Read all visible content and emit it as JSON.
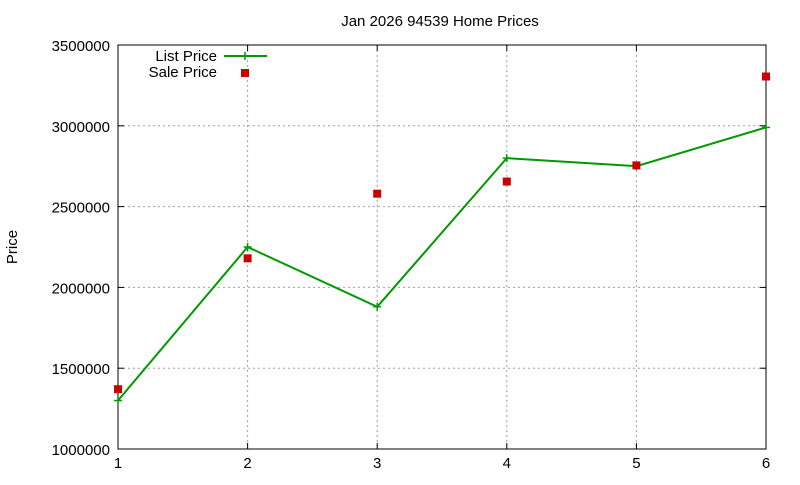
{
  "chart_data": {
    "type": "line",
    "title": "Jan 2026 94539 Home Prices",
    "xlabel": "",
    "ylabel": "Price",
    "x": [
      1,
      2,
      3,
      4,
      5,
      6
    ],
    "xlim": [
      1,
      6
    ],
    "ylim": [
      1000000,
      3500000
    ],
    "xticks": [
      "1",
      "2",
      "3",
      "4",
      "5",
      "6"
    ],
    "yticks": [
      "1000000",
      "1500000",
      "2000000",
      "2500000",
      "3000000",
      "3500000"
    ],
    "grid": true,
    "legend": "top-left",
    "series": [
      {
        "name": "List Price",
        "style": "line-points",
        "marker": "plus",
        "color": "#009900",
        "values": [
          1300000,
          2250000,
          1880000,
          2800000,
          2750000,
          2990000
        ]
      },
      {
        "name": "Sale Price",
        "style": "points",
        "marker": "square",
        "color": "#cc0000",
        "values": [
          1370000,
          2180000,
          2580000,
          2655000,
          2755000,
          3305000
        ]
      }
    ]
  }
}
